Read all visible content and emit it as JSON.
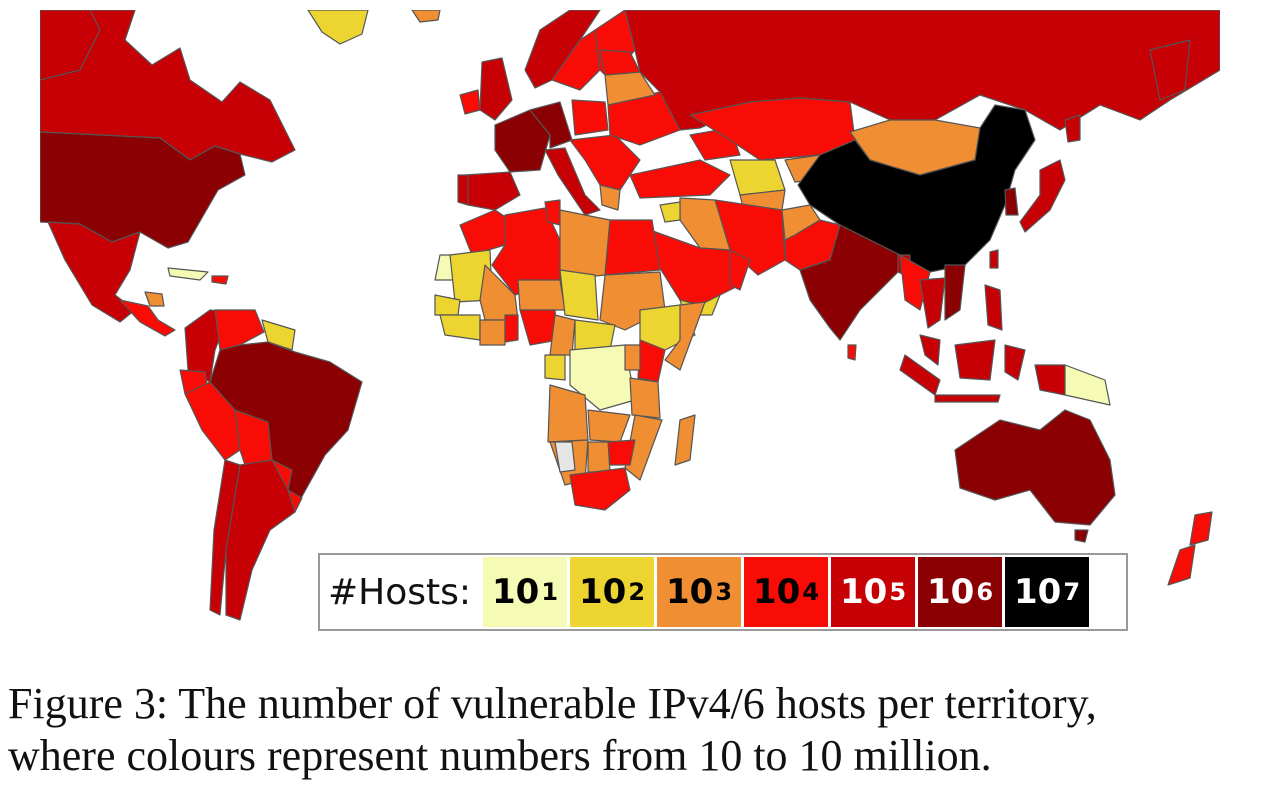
{
  "map": {
    "colors": {
      "1e1": "#f5fbb5",
      "1e2": "#ecd531",
      "1e3": "#ef8e33",
      "1e4": "#fa0c06",
      "1e5": "#c70006",
      "1e6": "#8a0003",
      "1e7": "#000000",
      "nodata": "#e6e6e6"
    }
  },
  "legend": {
    "label": "#Hosts:",
    "items": [
      {
        "base": "10",
        "exp": "1",
        "color": "#f5fbb5",
        "text_color": "#000000"
      },
      {
        "base": "10",
        "exp": "2",
        "color": "#ecd531",
        "text_color": "#000000"
      },
      {
        "base": "10",
        "exp": "3",
        "color": "#ef8e33",
        "text_color": "#000000"
      },
      {
        "base": "10",
        "exp": "4",
        "color": "#fa0c06",
        "text_color": "#000000"
      },
      {
        "base": "10",
        "exp": "5",
        "color": "#c70006",
        "text_color": "#ffffff"
      },
      {
        "base": "10",
        "exp": "6",
        "color": "#8a0003",
        "text_color": "#ffffff"
      },
      {
        "base": "10",
        "exp": "7",
        "color": "#000000",
        "text_color": "#ffffff"
      }
    ]
  },
  "caption": {
    "line1": "Figure 3: The number of vulnerable IPv4/6 hosts per territory,",
    "line2": "where colours represent numbers from 10 to 10 million."
  }
}
